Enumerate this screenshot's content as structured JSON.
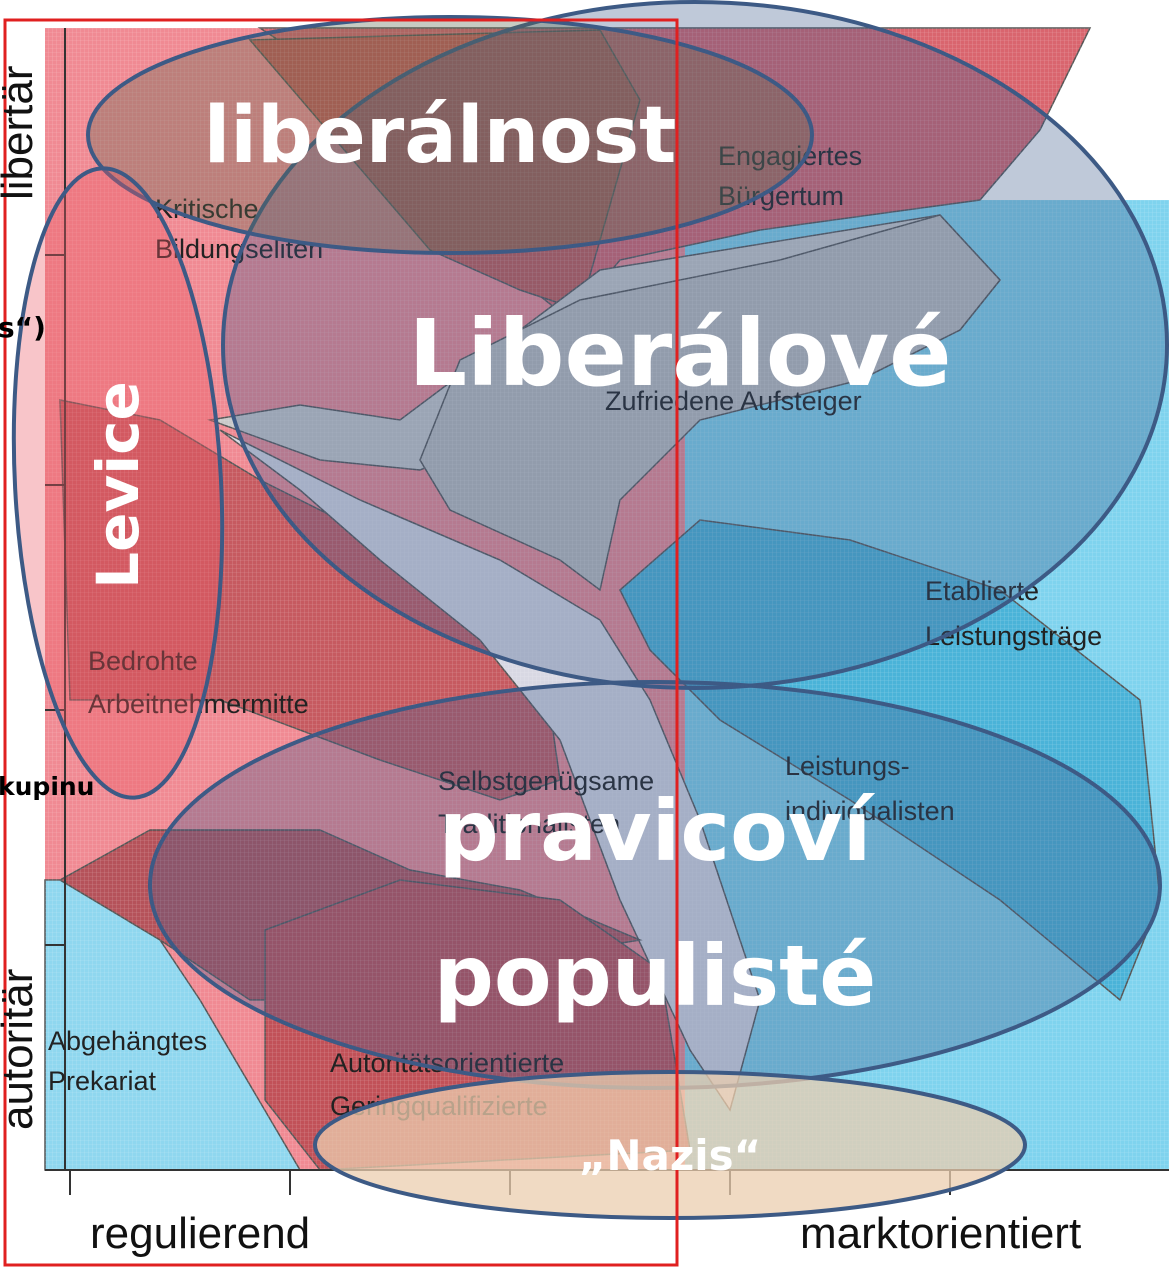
{
  "axes": {
    "y_top": "libertär",
    "y_bottom": "autoritär",
    "x_left": "regulierend",
    "x_right": "marktorientiert"
  },
  "groups": [
    {
      "lines": [
        "Engagiertes",
        "Bürgertum"
      ]
    },
    {
      "lines": [
        "Kritische",
        "Bildungseliten"
      ]
    },
    {
      "lines": [
        "Zufriedene Aufsteiger"
      ]
    },
    {
      "lines": [
        "Etablierte",
        "Leistungsträge"
      ]
    },
    {
      "lines": [
        "Bedrohte",
        "Arbeitnehmermitte"
      ]
    },
    {
      "lines": [
        "Selbstgenügsame",
        "Traditionalisten"
      ]
    },
    {
      "lines": [
        "Leistungs-",
        "individualisten"
      ]
    },
    {
      "lines": [
        "Abgehängtes",
        "Prekariat"
      ]
    },
    {
      "lines": [
        "Autoritätsorientierte",
        "Geringqualifizierte"
      ]
    }
  ],
  "overlays": {
    "liberalnost": "liberálnost",
    "liberalove": "Liberálové",
    "levice": "Levice",
    "populists": [
      "pravicoví",
      "populisté"
    ],
    "nazis": "„Nazis“"
  },
  "fragments": [
    "s“)",
    "kupinu"
  ]
}
